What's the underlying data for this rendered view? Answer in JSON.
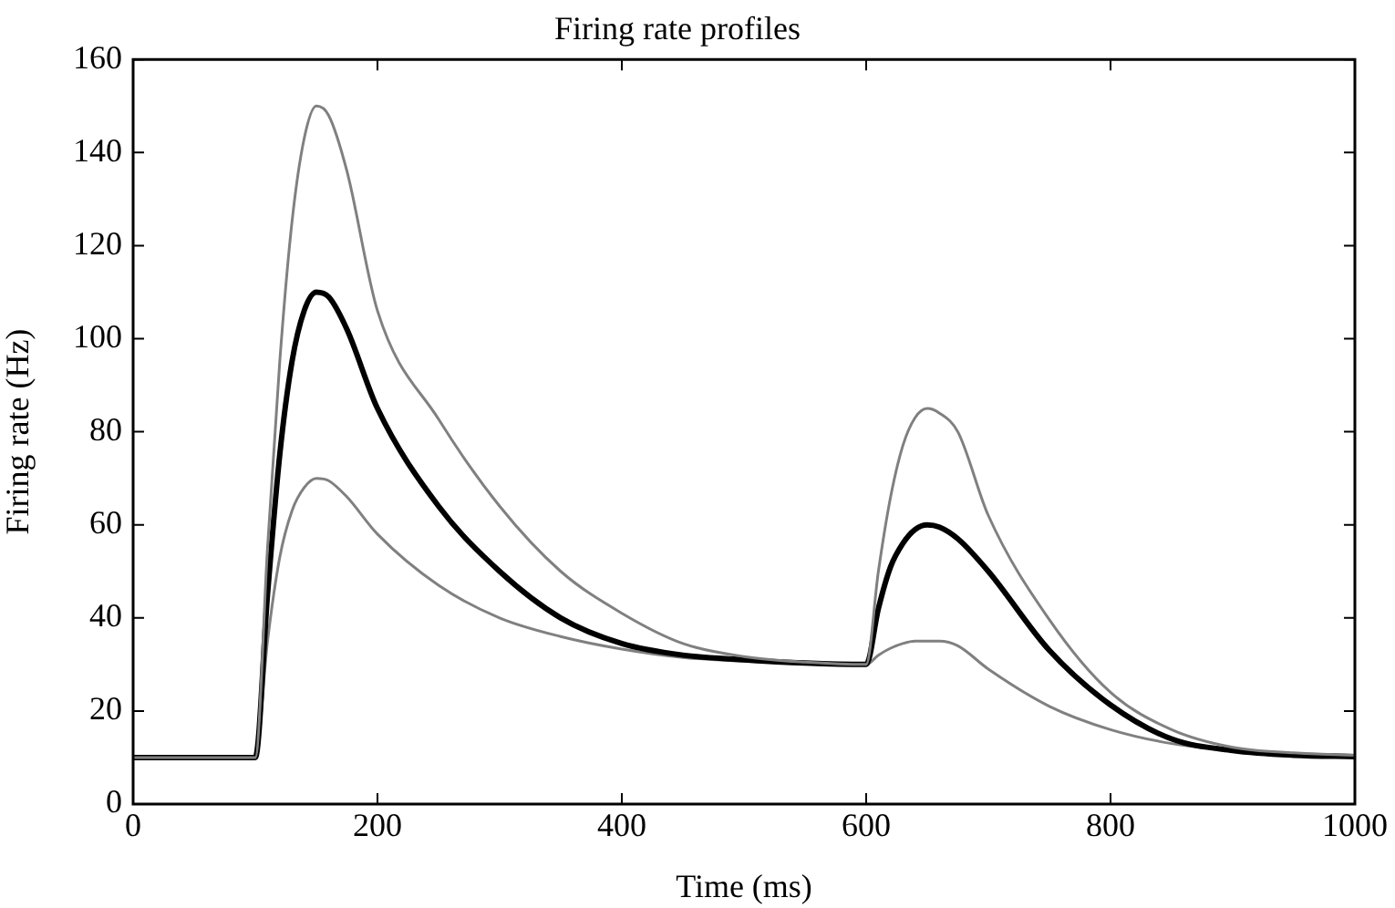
{
  "chart_data": {
    "type": "line",
    "title": "Firing rate profiles",
    "xlabel": "Time (ms)",
    "ylabel": "Firing rate (Hz)",
    "x": [
      0,
      100,
      110,
      120,
      130,
      140,
      150,
      160,
      175,
      200,
      250,
      300,
      350,
      400,
      450,
      500,
      550,
      600,
      610,
      620,
      630,
      640,
      650,
      660,
      675,
      700,
      750,
      800,
      850,
      900,
      950,
      1000
    ],
    "series": [
      {
        "color": "#808080",
        "values": [
          10,
          10,
          55,
          95,
          125,
          143,
          150,
          148,
          136,
          106,
          82.7,
          64,
          50,
          41,
          34.5,
          31.7,
          30.5,
          30,
          50,
          66,
          77,
          83,
          85,
          84,
          80,
          62,
          39.6,
          24,
          16,
          12.2,
          11,
          10.5
        ]
      },
      {
        "color": "#000000",
        "values": [
          10,
          10,
          45,
          75,
          95,
          106,
          110,
          109,
          102,
          85,
          64,
          50,
          40,
          34.5,
          32,
          31,
          30.3,
          30,
          42,
          51,
          56,
          59,
          60,
          59.5,
          57,
          50,
          33,
          21.3,
          14,
          11.5,
          10.5,
          10.2
        ]
      },
      {
        "color": "#808080",
        "values": [
          10,
          10,
          35,
          53,
          63,
          68,
          70,
          69.5,
          66,
          58,
          47,
          40,
          36,
          33.3,
          31.5,
          30.7,
          30.2,
          30,
          32,
          33.5,
          34.5,
          35,
          35,
          35,
          34,
          29,
          21,
          16,
          13,
          11.5,
          10.8,
          10.5
        ]
      }
    ],
    "xlim": [
      0,
      1000
    ],
    "xticks": [
      0,
      200,
      400,
      600,
      800,
      1000
    ],
    "ylim": [
      0,
      160
    ],
    "yticks": [
      0,
      20,
      40,
      60,
      80,
      100,
      120,
      140,
      160
    ],
    "grid": false,
    "legend": false,
    "marker": "none",
    "line_style": "solid"
  }
}
